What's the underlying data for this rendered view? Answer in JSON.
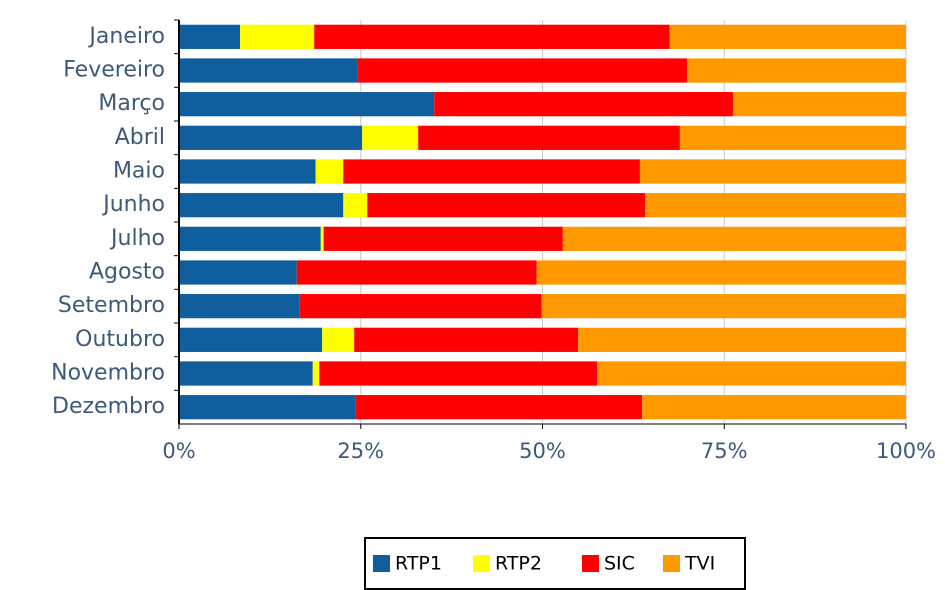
{
  "chart_data": {
    "type": "stacked-bar-horizontal",
    "categories": [
      "Janeiro",
      "Fevereiro",
      "Março",
      "Abril",
      "Maio",
      "Junho",
      "Julho",
      "Agosto",
      "Setembro",
      "Outubro",
      "Novembro",
      "Dezembro"
    ],
    "series": [
      {
        "name": "RTP1",
        "color": "#0f5f9e",
        "values": [
          8.4,
          24.5,
          35.1,
          25.2,
          18.8,
          22.6,
          19.5,
          16.2,
          16.6,
          19.7,
          18.4,
          24.3
        ]
      },
      {
        "name": "RTP2",
        "color": "#ffff00",
        "values": [
          10.2,
          0,
          0,
          7.7,
          3.8,
          3.3,
          0.4,
          0,
          0,
          4.4,
          0.9,
          0
        ]
      },
      {
        "name": "SIC",
        "color": "#ff0000",
        "values": [
          48.9,
          45.4,
          41.1,
          36.0,
          40.8,
          38.2,
          32.9,
          33.0,
          33.3,
          30.8,
          38.2,
          39.4
        ]
      },
      {
        "name": "TVI",
        "color": "#ff9900",
        "values": [
          32.5,
          30.1,
          23.8,
          31.1,
          36.6,
          35.9,
          47.2,
          50.8,
          50.1,
          45.1,
          42.5,
          36.3
        ]
      }
    ],
    "xlim": [
      0,
      100
    ],
    "xticks": [
      {
        "value": 0,
        "label": "0%"
      },
      {
        "value": 25,
        "label": "25%"
      },
      {
        "value": 50,
        "label": "50%"
      },
      {
        "value": 75,
        "label": "75%"
      },
      {
        "value": 100,
        "label": "100%"
      }
    ],
    "grid": true,
    "legend": "bottom"
  }
}
